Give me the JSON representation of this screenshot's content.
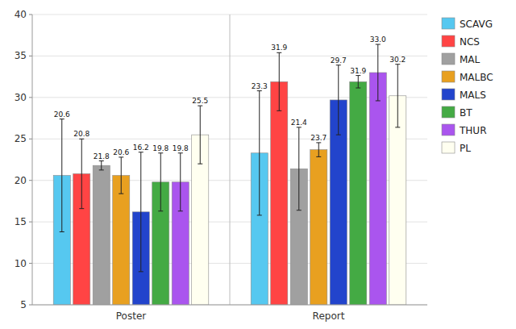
{
  "chart_data": {
    "type": "bar",
    "categories": [
      "Poster",
      "Report"
    ],
    "series": [
      {
        "name": "SCAVG",
        "color": "#56C8F0",
        "values": [
          20.6,
          23.3
        ],
        "errors": [
          6.8,
          7.5
        ]
      },
      {
        "name": "NCS",
        "color": "#FF4444",
        "values": [
          20.8,
          31.9
        ],
        "errors": [
          4.2,
          3.5
        ]
      },
      {
        "name": "MAL",
        "color": "#A0A0A0",
        "values": [
          21.8,
          21.4
        ],
        "errors": [
          0.55,
          5.0
        ]
      },
      {
        "name": "MALBC",
        "color": "#E8A020",
        "values": [
          20.6,
          23.7
        ],
        "errors": [
          2.2,
          0.85
        ]
      },
      {
        "name": "MALS",
        "color": "#2244CC",
        "values": [
          16.2,
          29.7
        ],
        "errors": [
          7.2,
          4.2
        ]
      },
      {
        "name": "BT",
        "color": "#44AA44",
        "values": [
          19.8,
          31.9
        ],
        "errors": [
          3.5,
          0.75
        ]
      },
      {
        "name": "THUR",
        "color": "#AA55EE",
        "values": [
          19.8,
          33.0
        ],
        "value_labels": [
          "19.8",
          "33.0"
        ],
        "errors": [
          3.5,
          3.4
        ]
      },
      {
        "name": "PL",
        "color": "#FFFFF0",
        "values": [
          25.5,
          30.2
        ],
        "errors": [
          3.5,
          3.8
        ]
      }
    ],
    "ylim": [
      5,
      40
    ],
    "yticks": [
      5,
      10,
      15,
      20,
      25,
      30,
      35,
      40
    ],
    "grid": true,
    "legend": "right",
    "data_labels": true
  }
}
